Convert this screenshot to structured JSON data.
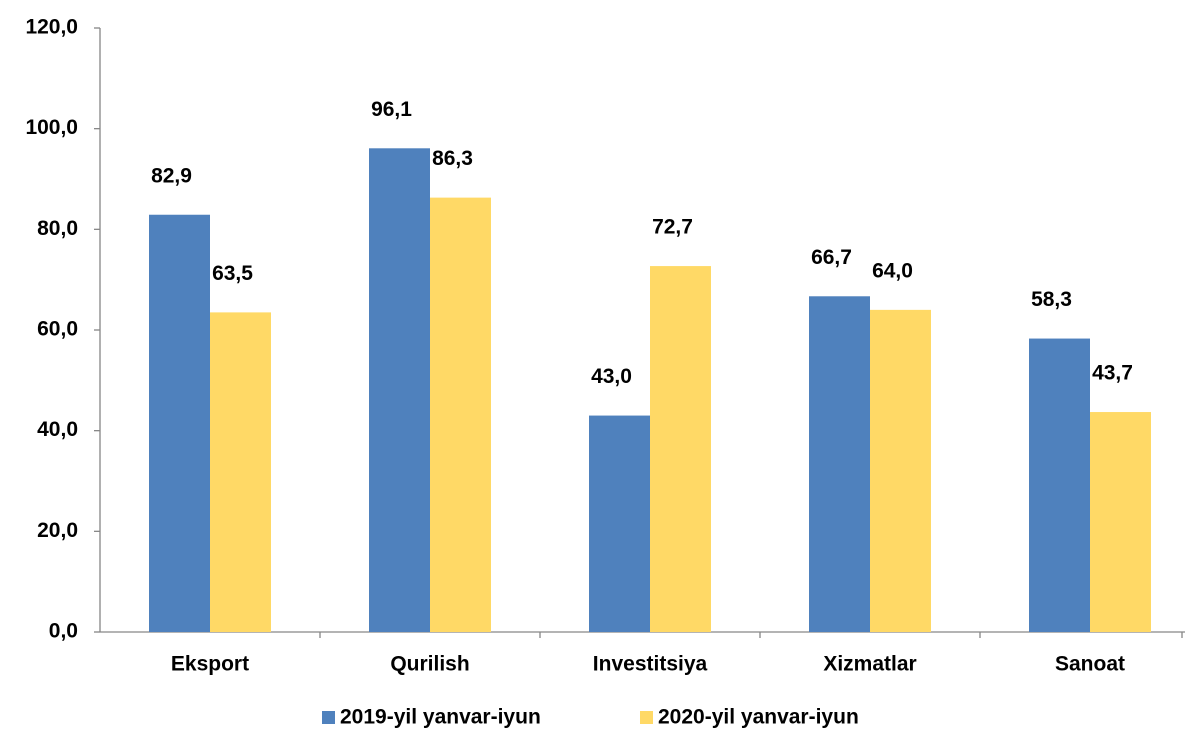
{
  "chart_data": {
    "type": "bar",
    "categories": [
      "Eksport",
      "Qurilish",
      "Investitsiya",
      "Xizmatlar",
      "Sanoat"
    ],
    "series": [
      {
        "name": "2019-yil yanvar-iyun",
        "color": "#4f81bd",
        "values": [
          82.9,
          96.1,
          43.0,
          66.7,
          58.3
        ],
        "value_labels": [
          "82,9",
          "96,1",
          "43,0",
          "66,7",
          "58,3"
        ]
      },
      {
        "name": "2020-yil yanvar-iyun",
        "color": "#ffd966",
        "values": [
          63.5,
          86.3,
          72.7,
          64.0,
          43.7
        ],
        "value_labels": [
          "63,5",
          "86,3",
          "72,7",
          "64,0",
          "43,7"
        ]
      }
    ],
    "ylim": [
      0,
      120
    ],
    "yticks": [
      {
        "value": 0,
        "label": "0,0"
      },
      {
        "value": 20,
        "label": "20,0"
      },
      {
        "value": 40,
        "label": "40,0"
      },
      {
        "value": 60,
        "label": "60,0"
      },
      {
        "value": 80,
        "label": "80,0"
      },
      {
        "value": 100,
        "label": "100,0"
      },
      {
        "value": 120,
        "label": "120,0"
      }
    ],
    "grid": false,
    "legend": "bottom"
  }
}
